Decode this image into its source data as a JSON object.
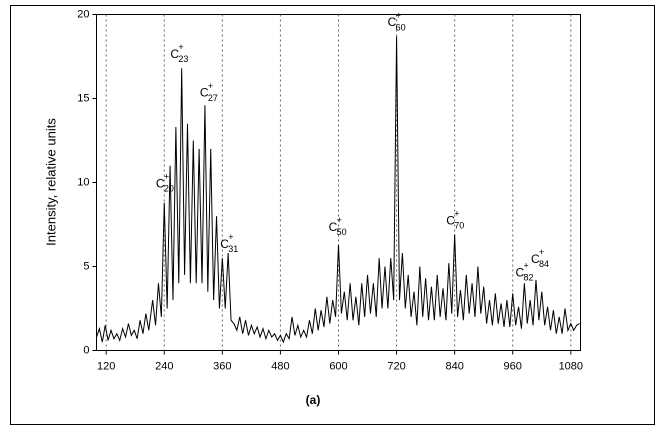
{
  "chart_data": {
    "type": "line",
    "ylabel": "Intensity, relative units",
    "caption": "(a)",
    "xlim": [
      100,
      1100
    ],
    "ylim": [
      0,
      20
    ],
    "xticks": [
      120,
      240,
      360,
      480,
      600,
      720,
      840,
      960,
      1080
    ],
    "yticks": [
      0,
      5,
      10,
      15,
      20
    ],
    "grid": "x",
    "x": [
      100,
      106,
      112,
      118,
      124,
      130,
      136,
      142,
      148,
      154,
      160,
      166,
      172,
      178,
      184,
      190,
      196,
      202,
      208,
      216,
      222,
      228,
      234,
      240,
      246,
      252,
      258,
      264,
      270,
      276,
      282,
      288,
      294,
      300,
      306,
      312,
      318,
      324,
      330,
      336,
      342,
      348,
      354,
      360,
      366,
      372,
      378,
      384,
      390,
      396,
      402,
      408,
      414,
      420,
      426,
      432,
      438,
      444,
      450,
      456,
      462,
      468,
      474,
      480,
      486,
      492,
      498,
      504,
      510,
      516,
      522,
      528,
      534,
      540,
      546,
      552,
      558,
      564,
      570,
      576,
      582,
      588,
      594,
      600,
      606,
      612,
      618,
      624,
      630,
      636,
      642,
      648,
      654,
      660,
      666,
      672,
      678,
      684,
      690,
      696,
      702,
      708,
      714,
      720,
      726,
      732,
      738,
      744,
      750,
      756,
      762,
      768,
      774,
      780,
      786,
      792,
      798,
      804,
      810,
      816,
      822,
      828,
      834,
      840,
      846,
      852,
      858,
      864,
      870,
      876,
      882,
      888,
      894,
      900,
      906,
      912,
      918,
      924,
      930,
      936,
      942,
      948,
      954,
      960,
      966,
      972,
      978,
      984,
      990,
      996,
      1002,
      1008,
      1014,
      1020,
      1026,
      1032,
      1038,
      1044,
      1050,
      1056,
      1062,
      1068,
      1074,
      1080,
      1086,
      1092,
      1098
    ],
    "series": [
      {
        "color": "#000000",
        "values": [
          0.8,
          1.3,
          0.5,
          1.5,
          0.6,
          1.2,
          0.7,
          1.0,
          0.6,
          1.3,
          0.8,
          1.6,
          0.9,
          1.2,
          0.7,
          1.8,
          1.0,
          2.2,
          1.2,
          3.0,
          1.5,
          4.0,
          2.0,
          8.8,
          2.5,
          11.0,
          3.0,
          13.3,
          4.0,
          16.8,
          4.5,
          13.5,
          4.0,
          12.5,
          4.0,
          12.0,
          4.0,
          14.6,
          3.5,
          12.0,
          3.0,
          8.0,
          2.5,
          5.5,
          2.5,
          5.8,
          1.8,
          1.6,
          1.2,
          2.0,
          1.0,
          1.8,
          0.9,
          1.5,
          1.0,
          1.4,
          0.8,
          1.3,
          0.7,
          1.2,
          0.8,
          1.0,
          0.6,
          0.9,
          0.5,
          1.0,
          0.7,
          2.0,
          0.9,
          1.5,
          0.8,
          1.2,
          0.8,
          1.8,
          1.0,
          2.5,
          1.2,
          2.4,
          1.4,
          3.2,
          1.6,
          3.0,
          2.0,
          6.3,
          2.2,
          3.5,
          1.8,
          4.0,
          1.8,
          3.2,
          1.5,
          4.0,
          2.0,
          4.5,
          2.2,
          4.0,
          2.0,
          5.5,
          2.5,
          5.0,
          2.5,
          5.5,
          3.0,
          18.7,
          3.0,
          5.8,
          2.5,
          4.5,
          2.0,
          3.5,
          1.5,
          5.0,
          2.0,
          4.3,
          1.8,
          3.8,
          1.8,
          4.5,
          2.0,
          3.7,
          1.8,
          5.2,
          2.2,
          6.9,
          2.0,
          3.6,
          1.8,
          4.5,
          2.2,
          4.0,
          2.0,
          5.0,
          2.2,
          3.8,
          1.6,
          3.0,
          1.5,
          3.4,
          1.6,
          2.8,
          1.4,
          3.0,
          1.4,
          3.4,
          1.5,
          2.6,
          1.3,
          4.0,
          1.6,
          3.0,
          1.5,
          4.2,
          1.8,
          3.5,
          1.5,
          2.6,
          1.2,
          2.4,
          1.0,
          2.0,
          1.0,
          2.5,
          1.2,
          1.6,
          1.2,
          1.5,
          1.6
        ]
      }
    ],
    "annotations": [
      {
        "text": "C",
        "sub": "20",
        "sup": "+",
        "x": 235,
        "y": 9.9
      },
      {
        "text": "C",
        "sub": "23",
        "sup": "+",
        "x": 265,
        "y": 17.6
      },
      {
        "text": "C",
        "sub": "27",
        "sup": "+",
        "x": 326,
        "y": 15.3
      },
      {
        "text": "C",
        "sub": "31",
        "sup": "+",
        "x": 368,
        "y": 6.3
      },
      {
        "text": "C",
        "sub": "50",
        "sup": "+",
        "x": 592,
        "y": 7.3
      },
      {
        "text": "C",
        "sub": "60",
        "sup": "+",
        "x": 714,
        "y": 19.5
      },
      {
        "text": "C",
        "sub": "70",
        "sup": "+",
        "x": 835,
        "y": 7.7
      },
      {
        "text": "C",
        "sub": "82",
        "sup": "+",
        "x": 978,
        "y": 4.6
      },
      {
        "text": "C",
        "sub": "84",
        "sup": "+",
        "x": 1010,
        "y": 5.4
      }
    ]
  }
}
